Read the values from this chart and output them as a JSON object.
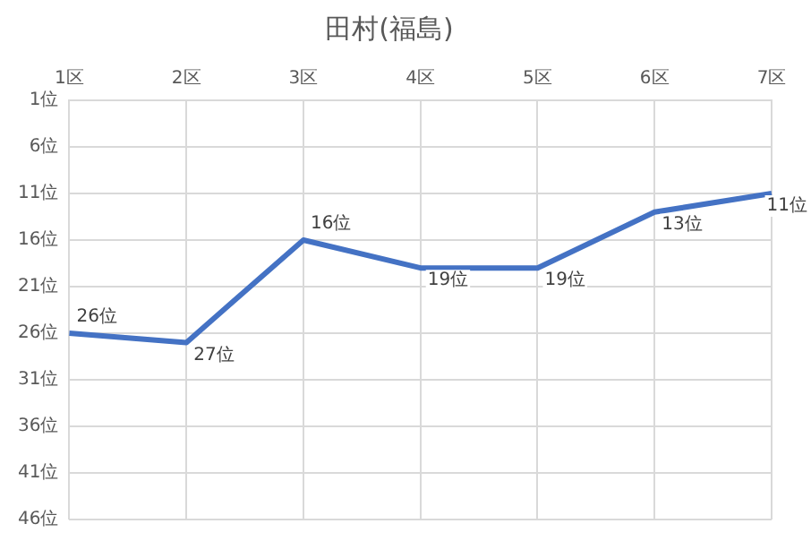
{
  "chart_data": {
    "type": "line",
    "title": "田村(福島)",
    "categories": [
      "1区",
      "2区",
      "3区",
      "4区",
      "5区",
      "6区",
      "7区"
    ],
    "series": [
      {
        "color": "#4472c4",
        "values": [
          26,
          27,
          16,
          19,
          19,
          13,
          11
        ],
        "value_labels": [
          "26位",
          "27位",
          "16位",
          "19位",
          "19位",
          "13位",
          "11位"
        ]
      }
    ],
    "ylim": [
      46,
      1
    ],
    "yticks": [
      {
        "value": 1,
        "label": "1位"
      },
      {
        "value": 6,
        "label": "6位"
      },
      {
        "value": 11,
        "label": "11位"
      },
      {
        "value": 16,
        "label": "16位"
      },
      {
        "value": 21,
        "label": "21位"
      },
      {
        "value": 26,
        "label": "26位"
      },
      {
        "value": 31,
        "label": "31位"
      },
      {
        "value": 36,
        "label": "36位"
      },
      {
        "value": 41,
        "label": "41位"
      },
      {
        "value": 46,
        "label": "46位"
      }
    ],
    "grid": true,
    "marker": "none",
    "line_style": "solid"
  }
}
